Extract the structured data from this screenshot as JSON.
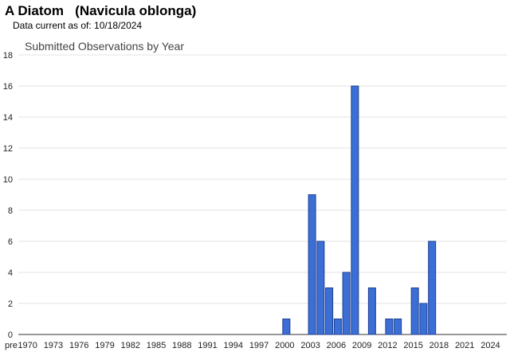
{
  "header": {
    "species": "A Diatom   (Navicula oblonga)",
    "updated": "Data current as of: 10/18/2024"
  },
  "chart_data": {
    "type": "bar",
    "title": "Submitted Observations by Year",
    "xlabel": "",
    "ylabel": "",
    "ylim": [
      0,
      18
    ],
    "y_ticks": [
      0,
      2,
      4,
      6,
      8,
      10,
      12,
      14,
      16,
      18
    ],
    "x_tick_labels": [
      "pre",
      "1970",
      "1973",
      "1976",
      "1979",
      "1982",
      "1985",
      "1988",
      "1991",
      "1994",
      "1997",
      "2000",
      "2003",
      "2006",
      "2009",
      "2012",
      "2015",
      "2018",
      "2021",
      "2024"
    ],
    "grid": true,
    "bar_color": "#3b6fd6",
    "points": [
      {
        "year": 2000,
        "value": 1
      },
      {
        "year": 2003,
        "value": 9
      },
      {
        "year": 2004,
        "value": 6
      },
      {
        "year": 2005,
        "value": 3
      },
      {
        "year": 2006,
        "value": 1
      },
      {
        "year": 2007,
        "value": 4
      },
      {
        "year": 2008,
        "value": 16
      },
      {
        "year": 2010,
        "value": 3
      },
      {
        "year": 2012,
        "value": 1
      },
      {
        "year": 2013,
        "value": 1
      },
      {
        "year": 2015,
        "value": 3
      },
      {
        "year": 2016,
        "value": 2
      },
      {
        "year": 2017,
        "value": 6
      }
    ]
  }
}
